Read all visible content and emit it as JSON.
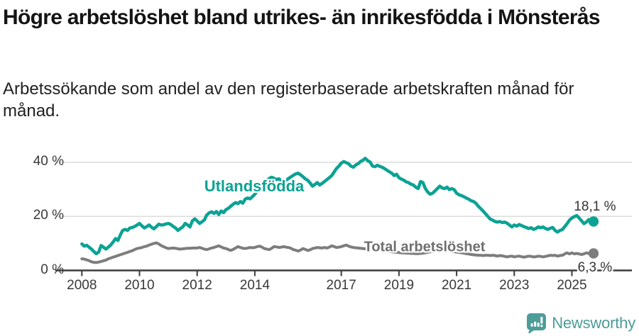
{
  "header": {
    "title": "Högre arbetslöshet bland utrikes- än inrikesfödda i Mönsterås",
    "subtitle": "Arbetssökande som andel av den registerbaserade arbetskraften månad för månad."
  },
  "footer": {
    "brand": "Newsworthy"
  },
  "colors": {
    "accent_teal": "#0CA294",
    "line_gray": "#7D7D7D",
    "label_gray": "#6F6F6F",
    "axis": "#3C3C3C",
    "gridline": "#DCDCDC",
    "annotation": "#333333",
    "logo_teal": "#4D9C98"
  },
  "chart_data": {
    "type": "line",
    "title": "Högre arbetslöshet bland utrikes- än inrikesfödda i Mönsterås",
    "subtitle": "Arbetssökande som andel av den registerbaserade arbetskraften månad för månad.",
    "x_unit": "month",
    "x_start": 2008.0,
    "x_end": 2025.75,
    "ylim": [
      0,
      44
    ],
    "grid": "horizontal",
    "y_ticks": [
      {
        "value": 0,
        "label": "0 %"
      },
      {
        "value": 20,
        "label": "20 %"
      },
      {
        "value": 40,
        "label": "40 %"
      }
    ],
    "grid_values": [
      20,
      40
    ],
    "x_ticks": [
      {
        "year": 2008,
        "label": "2008"
      },
      {
        "year": 2010,
        "label": "2010"
      },
      {
        "year": 2012,
        "label": "2012"
      },
      {
        "year": 2014,
        "label": "2014"
      },
      {
        "year": 2017,
        "label": "2017"
      },
      {
        "year": 2019,
        "label": "2019"
      },
      {
        "year": 2021,
        "label": "2021"
      },
      {
        "year": 2023,
        "label": "2023"
      },
      {
        "year": 2025,
        "label": "2025"
      }
    ],
    "legend_position": "inline-labels",
    "series": [
      {
        "name": "Utlandsfödda",
        "color": "#0CA294",
        "end_label": "18,1 %",
        "end_value": 18.1,
        "values": [
          9.8,
          9.0,
          9.3,
          8.6,
          7.9,
          7.0,
          6.2,
          6.8,
          9.2,
          8.6,
          7.9,
          8.6,
          9.4,
          10.5,
          11.8,
          11.1,
          13.1,
          14.8,
          15.2,
          14.8,
          15.7,
          15.9,
          16.3,
          16.8,
          17.4,
          16.5,
          15.7,
          16.2,
          16.8,
          16.0,
          15.4,
          16.2,
          17.1,
          16.8,
          16.9,
          17.2,
          17.4,
          17.0,
          16.3,
          15.7,
          14.8,
          15.5,
          16.1,
          17.4,
          16.8,
          16.1,
          18.3,
          19.1,
          18.3,
          17.4,
          18.0,
          18.7,
          20.5,
          21.3,
          21.7,
          21.1,
          21.8,
          20.7,
          22.0,
          21.4,
          22.5,
          23.0,
          23.8,
          24.5,
          25.1,
          24.7,
          25.5,
          24.9,
          26.4,
          26.8,
          26.5,
          27.3,
          28.2,
          29.4,
          30.5,
          31.6,
          32.6,
          33.4,
          34.0,
          34.5,
          34.1,
          33.6,
          33.9,
          33.3,
          33.0,
          33.4,
          34.0,
          34.6,
          35.2,
          35.7,
          36.0,
          35.4,
          34.7,
          33.9,
          33.4,
          32.4,
          31.2,
          31.8,
          32.5,
          31.6,
          32.2,
          32.9,
          33.6,
          34.3,
          35.1,
          36.4,
          37.7,
          38.6,
          39.7,
          40.3,
          39.9,
          39.5,
          38.6,
          38.2,
          39.0,
          39.5,
          40.3,
          40.8,
          41.5,
          40.6,
          40.1,
          38.6,
          38.4,
          38.9,
          38.5,
          38.2,
          37.7,
          37.1,
          36.5,
          36.0,
          35.1,
          35.6,
          34.3,
          33.8,
          33.4,
          32.8,
          32.5,
          31.9,
          31.6,
          30.8,
          30.3,
          32.9,
          32.5,
          30.3,
          29.0,
          28.2,
          28.6,
          29.4,
          30.3,
          31.2,
          30.5,
          30.3,
          30.8,
          29.9,
          30.3,
          29.9,
          28.6,
          28.0,
          27.7,
          27.3,
          26.8,
          26.4,
          25.8,
          25.5,
          24.9,
          23.8,
          22.9,
          22.0,
          21.0,
          20.0,
          19.0,
          18.6,
          18.1,
          17.9,
          18.1,
          17.7,
          17.9,
          17.5,
          16.8,
          16.1,
          16.8,
          16.4,
          17.0,
          16.6,
          16.2,
          15.9,
          15.5,
          15.8,
          15.2,
          15.5,
          16.1,
          15.8,
          16.1,
          15.5,
          15.2,
          15.6,
          15.9,
          14.8,
          14.2,
          14.8,
          15.1,
          16.2,
          17.3,
          18.6,
          19.4,
          19.9,
          20.3,
          19.4,
          18.4,
          17.3,
          17.9,
          18.8,
          18.3,
          18.1
        ]
      },
      {
        "name": "Total arbetslöshet",
        "color": "#7D7D7D",
        "end_label": "6,3 %",
        "end_value": 6.3,
        "values": [
          4.3,
          4.2,
          3.9,
          3.6,
          3.2,
          3.0,
          2.9,
          3.1,
          3.3,
          3.6,
          3.8,
          4.3,
          4.6,
          4.9,
          5.2,
          5.5,
          5.8,
          6.1,
          6.4,
          6.7,
          7.0,
          7.3,
          7.7,
          8.1,
          8.3,
          8.5,
          8.8,
          9.0,
          9.4,
          9.7,
          10.0,
          10.2,
          9.8,
          9.2,
          8.8,
          8.4,
          8.1,
          8.2,
          8.3,
          8.2,
          8.0,
          7.9,
          8.0,
          8.1,
          8.2,
          8.2,
          8.3,
          8.3,
          8.3,
          8.5,
          8.2,
          7.9,
          7.7,
          8.0,
          8.3,
          8.5,
          8.8,
          9.1,
          8.7,
          8.3,
          8.1,
          7.7,
          7.4,
          7.8,
          8.3,
          8.8,
          8.5,
          8.2,
          8.1,
          8.3,
          8.5,
          8.4,
          8.5,
          8.8,
          9.0,
          8.6,
          8.1,
          7.9,
          7.7,
          8.2,
          8.8,
          8.7,
          8.5,
          8.6,
          8.8,
          8.6,
          8.5,
          8.2,
          7.7,
          7.5,
          7.2,
          7.5,
          8.1,
          7.8,
          7.4,
          7.6,
          8.1,
          8.3,
          8.5,
          8.4,
          8.3,
          8.5,
          8.3,
          8.6,
          9.1,
          8.8,
          8.5,
          8.6,
          8.8,
          9.1,
          9.4,
          9.0,
          8.7,
          8.5,
          8.4,
          8.3,
          8.2,
          8.1,
          8.0,
          7.9,
          7.8,
          7.7,
          7.6,
          7.5,
          7.4,
          7.3,
          7.2,
          7.1,
          7.0,
          6.9,
          6.8,
          6.7,
          6.6,
          6.5,
          6.5,
          6.4,
          6.4,
          6.3,
          6.3,
          6.2,
          6.2,
          6.3,
          6.4,
          6.5,
          6.7,
          6.9,
          7.2,
          7.5,
          7.7,
          7.8,
          7.7,
          7.6,
          7.4,
          7.2,
          7.0,
          6.9,
          6.8,
          6.7,
          6.5,
          6.4,
          6.2,
          6.1,
          5.9,
          5.8,
          5.7,
          5.6,
          5.6,
          5.5,
          5.6,
          5.6,
          5.5,
          5.6,
          5.5,
          5.3,
          5.5,
          5.4,
          5.2,
          5.0,
          5.2,
          5.3,
          5.0,
          5.2,
          5.3,
          5.1,
          4.9,
          5.1,
          5.3,
          5.2,
          5.0,
          5.1,
          5.3,
          5.2,
          5.0,
          5.2,
          5.4,
          5.6,
          5.5,
          5.6,
          5.3,
          5.5,
          5.6,
          6.1,
          6.5,
          6.1,
          6.5,
          6.1,
          6.3,
          6.1,
          5.9,
          6.1,
          6.5,
          6.3,
          6.2,
          6.3
        ]
      }
    ]
  }
}
